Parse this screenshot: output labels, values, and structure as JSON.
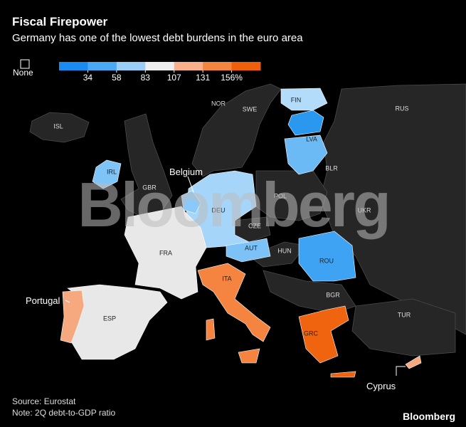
{
  "header": {
    "title": "Fiscal Firepower",
    "subtitle": "Germany has one of the lowest debt burdens in the euro area"
  },
  "legend": {
    "none_label": "None",
    "colors": [
      "#1a8cf0",
      "#4aa9f3",
      "#98cef8",
      "#eeeeee",
      "#f7b08a",
      "#f4853f",
      "#f0600a"
    ],
    "ticks": [
      34,
      58,
      83,
      107,
      131,
      {
        "value": 156,
        "label": "156%"
      }
    ]
  },
  "map": {
    "labels": [
      "ISL",
      "NOR",
      "SWE",
      "FIN",
      "RUS",
      "LVA",
      "IRL",
      "GBR",
      "BLR",
      "POL",
      "DEU",
      "UKR",
      "CZE",
      "AUT",
      "HUN",
      "FRA",
      "ROU",
      "ITA",
      "BGR",
      "ESP",
      "TUR",
      "GRC"
    ],
    "callouts": [
      "Belgium",
      "Portugal",
      "Cyprus"
    ]
  },
  "watermark": "Bloomberg",
  "footer": {
    "source": "Source: Eurostat",
    "note": "Note: 2Q debt-to-GDP ratio",
    "logo": "Bloomberg"
  }
}
